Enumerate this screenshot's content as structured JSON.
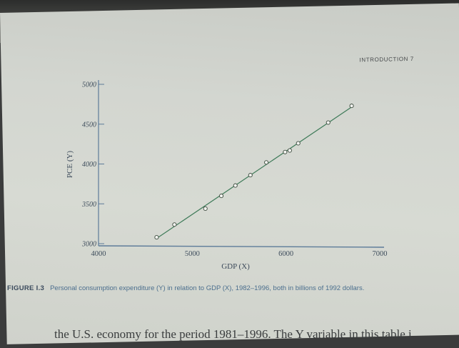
{
  "header": {
    "running_head": "INTRODUCTION   7"
  },
  "chart_data": {
    "type": "scatter",
    "xlabel": "GDP (X)",
    "ylabel": "PCE (Y)",
    "xlim": [
      4000,
      7000
    ],
    "ylim": [
      3000,
      5000
    ],
    "x_ticks": [
      "4000",
      "5000",
      "6000",
      "7000"
    ],
    "y_ticks": [
      "3000",
      "3500",
      "4000",
      "4500",
      "5000"
    ],
    "fit_line": true,
    "points": [
      {
        "x": 4620,
        "y": 3080
      },
      {
        "x": 4810,
        "y": 3240
      },
      {
        "x": 5140,
        "y": 3440
      },
      {
        "x": 5310,
        "y": 3600
      },
      {
        "x": 5460,
        "y": 3730
      },
      {
        "x": 5620,
        "y": 3860
      },
      {
        "x": 5790,
        "y": 4020
      },
      {
        "x": 5990,
        "y": 4150
      },
      {
        "x": 6040,
        "y": 4170
      },
      {
        "x": 6130,
        "y": 4260
      },
      {
        "x": 6450,
        "y": 4520
      },
      {
        "x": 6700,
        "y": 4730
      }
    ],
    "colors": {
      "points": "#f4f5f1",
      "point_outline": "#3c4a3e",
      "line": "#3e7a58",
      "axis": "#5d7b99"
    }
  },
  "caption": {
    "label": "FIGURE I.3",
    "text": "Personal consumption expenditure (Y) in relation to GDP (X), 1982–1996, both in billions of 1992 dollars."
  },
  "body_text": "the U.S. economy for the period 1981–1996. The Y variable in this table i"
}
